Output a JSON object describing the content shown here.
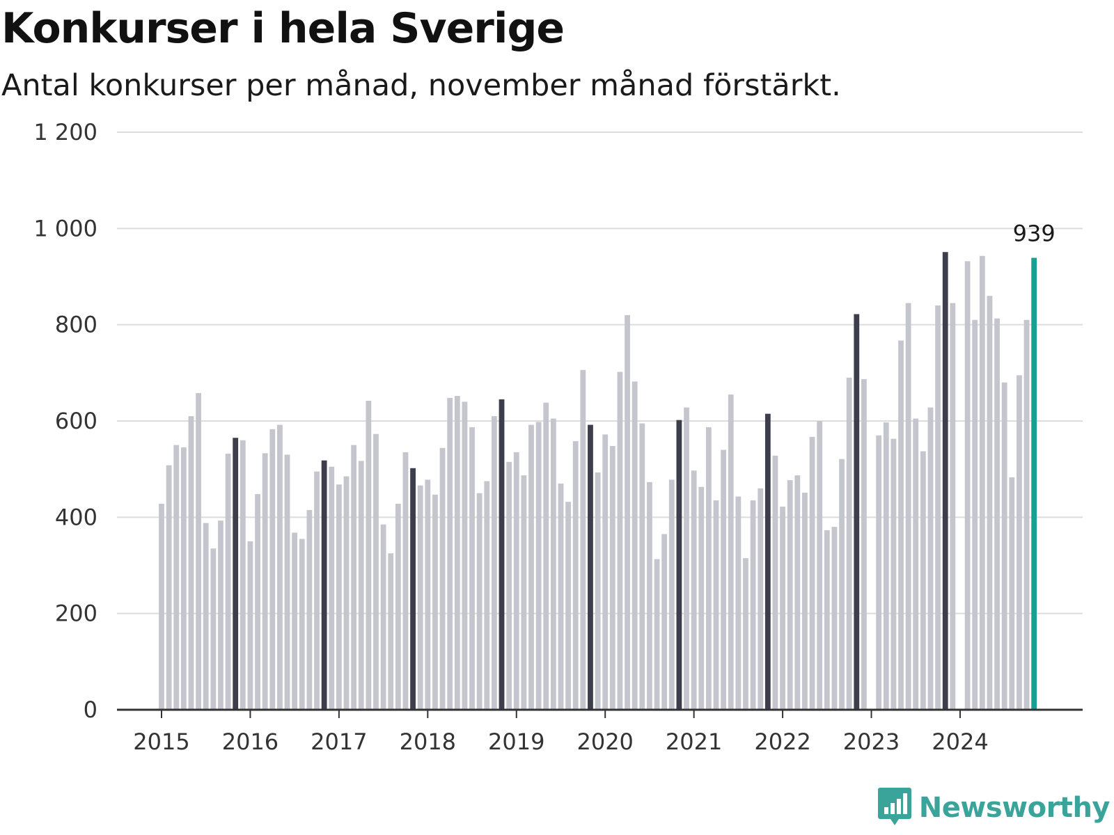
{
  "chart_data": {
    "type": "bar",
    "title": "Konkurser i hela Sverige",
    "subtitle": "Antal konkurser per månad, november månad förstärkt.",
    "ylim": [
      0,
      1200
    ],
    "y_ticks": [
      0,
      200,
      400,
      600,
      800,
      1000,
      1200
    ],
    "y_tick_labels": [
      "0",
      "200",
      "400",
      "600",
      "800",
      "1 000",
      "1 200"
    ],
    "x_tick_labels": [
      "2015",
      "2016",
      "2017",
      "2018",
      "2019",
      "2020",
      "2021",
      "2022",
      "2023",
      "2024"
    ],
    "start": "2015-01",
    "grid": true,
    "colors": {
      "regular": "#c5c5cd",
      "november": "#3d3e4b",
      "latest": "#17a095",
      "grid": "#dcdcdc",
      "axis": "#333333"
    },
    "annotation": {
      "text": "939"
    },
    "values": [
      428,
      508,
      550,
      545,
      610,
      658,
      388,
      335,
      393,
      532,
      565,
      560,
      350,
      448,
      533,
      583,
      592,
      530,
      368,
      355,
      415,
      495,
      518,
      505,
      468,
      485,
      550,
      517,
      642,
      573,
      385,
      325,
      428,
      535,
      502,
      466,
      478,
      447,
      544,
      648,
      652,
      640,
      587,
      450,
      475,
      610,
      645,
      515,
      535,
      487,
      592,
      598,
      638,
      605,
      470,
      432,
      558,
      706,
      592,
      493,
      572,
      548,
      702,
      820,
      682,
      595,
      473,
      313,
      365,
      478,
      602,
      628,
      497,
      463,
      587,
      435,
      540,
      655,
      443,
      315,
      435,
      460,
      615,
      528,
      422,
      477,
      487,
      451,
      567,
      600,
      373,
      380,
      521,
      690,
      822,
      687,
      0,
      570,
      597,
      563,
      767,
      845,
      605,
      537,
      628,
      840,
      951,
      845,
      0,
      932,
      810,
      943,
      860,
      813,
      680,
      483,
      695,
      810,
      939
    ]
  },
  "logo": {
    "text": "Newsworthy",
    "icon": "bar-chart-speech-bubble-icon"
  }
}
